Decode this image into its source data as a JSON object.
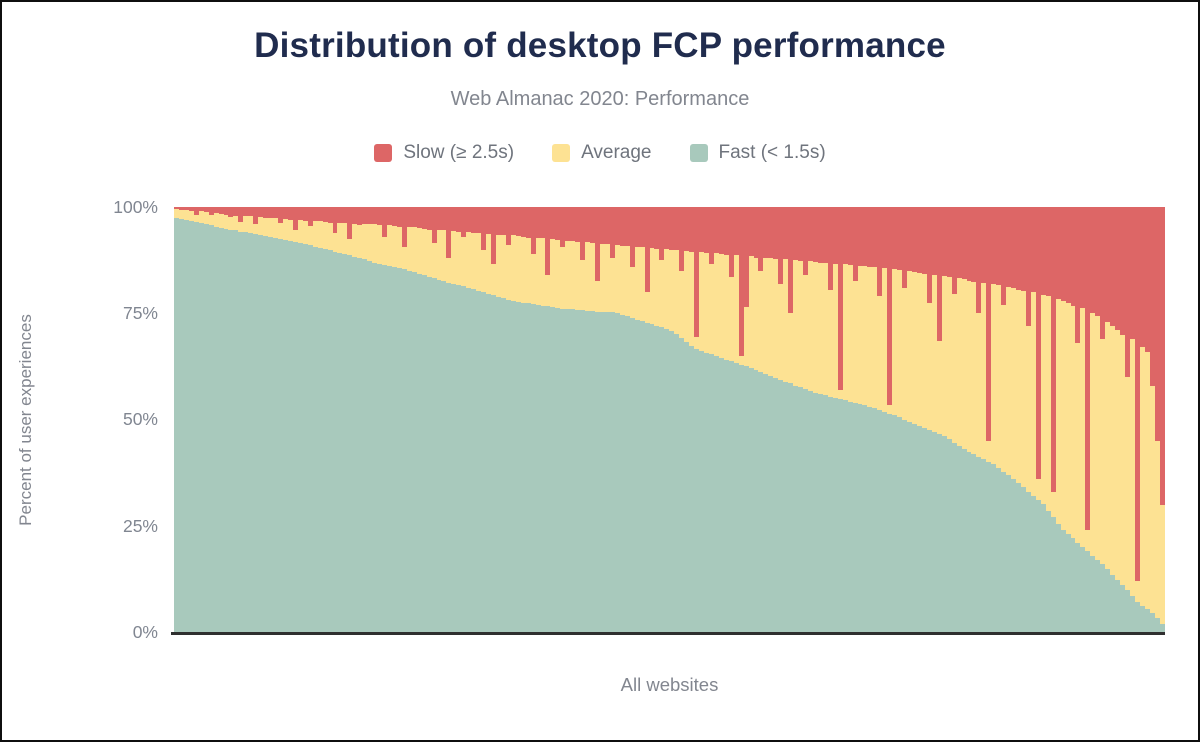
{
  "header": {
    "title": "Distribution of desktop FCP performance",
    "subtitle": "Web Almanac 2020: Performance"
  },
  "legend": [
    {
      "label": "Slow (≥ 2.5s)",
      "color": "#dd6666"
    },
    {
      "label": "Average",
      "color": "#fde293"
    },
    {
      "label": "Fast (< 1.5s)",
      "color": "#a8c9bc"
    }
  ],
  "axes": {
    "y_label": "Percent of user experiences",
    "y_ticks": [
      "100%",
      "75%",
      "50%",
      "25%",
      "0%"
    ],
    "x_label": "All websites"
  },
  "colors": {
    "slow": "#dd6666",
    "average": "#fde293",
    "fast": "#a8c9bc",
    "title": "#202c4e",
    "subtitle_gray": "#82868f",
    "axis_line": "#2f2f2f"
  },
  "chart_data": {
    "type": "bar",
    "stacked": true,
    "unit": "percent of user experiences",
    "title": "Distribution of desktop FCP performance",
    "subtitle": "Web Almanac 2020: Performance",
    "xlabel": "All websites",
    "ylabel": "Percent of user experiences",
    "ylim": [
      0,
      100
    ],
    "grid": false,
    "legend_position": "top",
    "x_description": "Individual websites sorted by decreasing share of fast FCP experiences; each bar stacks to 100%",
    "series": [
      {
        "name": "Fast (< 1.5s)",
        "color": "#a8c9bc",
        "values": [
          97.4,
          97.2,
          96.9,
          96.7,
          96.4,
          96.2,
          95.9,
          95.7,
          95.4,
          95.1,
          94.9,
          94.7,
          94.5,
          94.2,
          94.0,
          93.8,
          93.6,
          93.4,
          93.2,
          93.0,
          92.6,
          92.4,
          92.2,
          92.0,
          91.8,
          91.5,
          91.2,
          91.0,
          90.7,
          90.4,
          90.1,
          89.8,
          89.5,
          89.2,
          88.9,
          88.6,
          88.3,
          88.0,
          87.7,
          87.4,
          86.9,
          86.6,
          86.3,
          86.0,
          85.8,
          85.6,
          85.4,
          85.0,
          84.7,
          84.3,
          84.0,
          83.6,
          83.2,
          82.9,
          82.6,
          82.2,
          81.9,
          81.6,
          81.3,
          81.0,
          80.6,
          80.2,
          79.9,
          79.5,
          79.2,
          78.9,
          78.5,
          78.2,
          77.9,
          77.7,
          77.5,
          77.3,
          77.1,
          76.9,
          76.8,
          76.6,
          76.4,
          76.3,
          76.1,
          76.0,
          75.9,
          75.8,
          75.7,
          75.6,
          75.5,
          75.4,
          75.3,
          75.2,
          75.2,
          75.1,
          74.7,
          74.3,
          73.9,
          73.5,
          73.1,
          72.8,
          72.4,
          72.1,
          71.8,
          71.4,
          70.9,
          70.0,
          69.1,
          68.2,
          67.3,
          66.5,
          66.1,
          65.7,
          65.3,
          64.9,
          64.5,
          64.1,
          63.7,
          63.3,
          62.9,
          62.5,
          62.1,
          61.6,
          61.2,
          60.7,
          60.3,
          59.8,
          59.4,
          58.9,
          58.5,
          58.0,
          57.6,
          57.1,
          56.7,
          56.2,
          56.0,
          55.7,
          55.4,
          55.1,
          54.8,
          54.5,
          54.2,
          53.9,
          53.6,
          53.3,
          53.0,
          52.6,
          52.2,
          51.8,
          51.4,
          51.0,
          50.5,
          50.0,
          49.5,
          49.0,
          48.5,
          48.0,
          47.5,
          47.0,
          46.5,
          46.0,
          45.3,
          44.5,
          43.8,
          43.0,
          42.4,
          41.8,
          41.2,
          40.6,
          40.0,
          39.5,
          38.6,
          37.7,
          36.9,
          36.0,
          35.0,
          34.0,
          33.0,
          32.0,
          31.0,
          30.0,
          28.5,
          27.0,
          25.5,
          24.0,
          23.0,
          22.0,
          21.0,
          20.0,
          19.0,
          18.0,
          17.0,
          16.0,
          14.8,
          13.5,
          12.3,
          11.0,
          9.8,
          8.5,
          7.0,
          6.2,
          5.3,
          4.5,
          3.2,
          2.0
        ]
      },
      {
        "name": "Average",
        "color": "#fde293",
        "values": [
          2.2,
          2.1,
          2.5,
          2.3,
          1.8,
          2.8,
          2.9,
          2.3,
          3.3,
          3.3,
          3.3,
          2.9,
          3.5,
          2.3,
          3.9,
          4.0,
          2.4,
          4.3,
          4.2,
          4.5,
          4.8,
          3.8,
          5.0,
          5.0,
          2.7,
          5.5,
          5.6,
          4.5,
          6.1,
          6.2,
          6.4,
          6.5,
          4.5,
          7.1,
          7.3,
          3.9,
          7.8,
          7.8,
          8.3,
          8.5,
          9.0,
          9.1,
          6.7,
          9.7,
          9.7,
          9.8,
          5.1,
          10.3,
          10.5,
          10.7,
          10.9,
          11.1,
          8.3,
          11.7,
          11.9,
          5.8,
          12.5,
          12.6,
          11.7,
          13.1,
          13.3,
          13.6,
          10.1,
          14.2,
          7.3,
          14.6,
          14.9,
          12.8,
          15.4,
          15.4,
          15.4,
          15.5,
          11.9,
          15.8,
          15.8,
          7.4,
          16.0,
          16.0,
          14.4,
          16.1,
          16.0,
          16.0,
          11.8,
          16.1,
          16.0,
          7.1,
          16.1,
          16.1,
          12.8,
          16.0,
          16.2,
          16.5,
          12.1,
          17.2,
          17.4,
          7.2,
          18.0,
          18.1,
          15.7,
          18.7,
          19.0,
          19.8,
          15.9,
          21.5,
          22.2,
          3.0,
          23.3,
          23.5,
          21.2,
          24.2,
          24.4,
          24.7,
          19.8,
          25.4,
          2.1,
          14.0,
          26.3,
          26.5,
          23.8,
          27.4,
          27.6,
          28.0,
          22.6,
          28.8,
          16.5,
          29.5,
          29.8,
          26.9,
          30.5,
          30.9,
          30.9,
          31.1,
          25.1,
          31.6,
          2.2,
          32.0,
          32.2,
          28.6,
          32.6,
          32.8,
          32.9,
          33.2,
          26.8,
          33.9,
          2.1,
          34.4,
          34.7,
          31.0,
          35.5,
          35.8,
          35.9,
          36.2,
          30.0,
          37.1,
          22.0,
          37.8,
          38.3,
          35.0,
          39.5,
          40.1,
          40.3,
          40.6,
          33.8,
          41.6,
          5.0,
          42.3,
          43.0,
          39.3,
          44.3,
          45.0,
          45.5,
          46.2,
          39.0,
          47.9,
          5.0,
          49.3,
          50.5,
          6.0,
          52.9,
          54.0,
          54.4,
          54.8,
          47.0,
          56.2,
          5.0,
          57.0,
          57.4,
          53.0,
          58.2,
          58.5,
          58.7,
          59.0,
          50.2,
          60.5,
          5.0,
          60.8,
          60.7,
          53.5,
          41.8,
          28.0
        ]
      },
      {
        "name": "Slow (≥ 2.5s)",
        "color": "#dd6666",
        "derived": "100 - fast - average (stack remainder to 100%)"
      }
    ]
  }
}
